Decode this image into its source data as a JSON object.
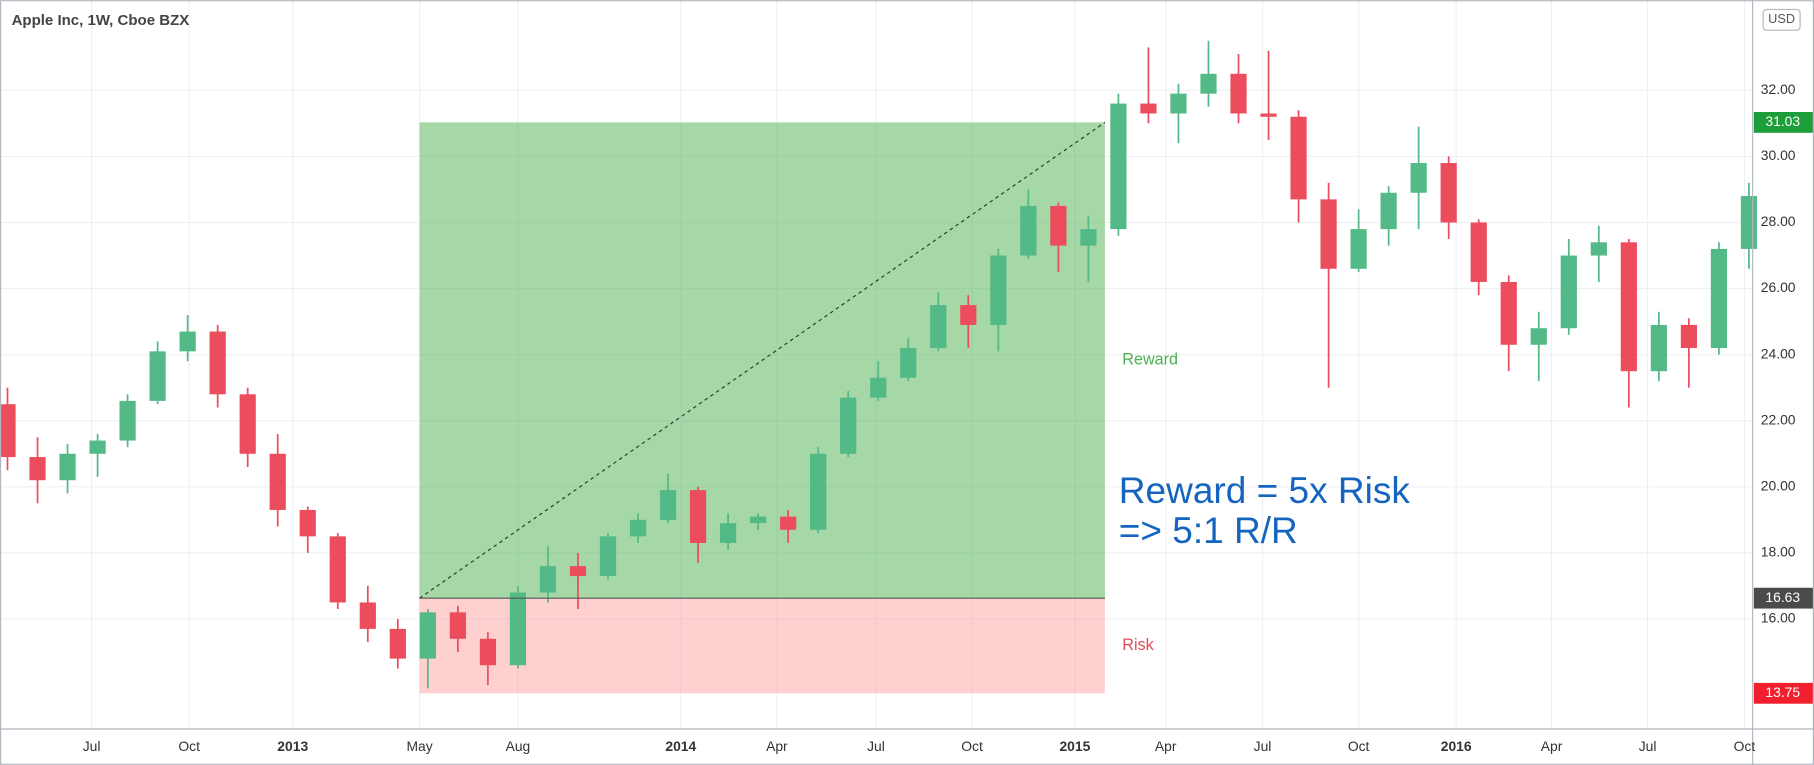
{
  "chart_data": {
    "type": "candlestick",
    "title": "Apple Inc, 1W, Cboe BZX",
    "currency": "USD",
    "up_color": "#53b987",
    "down_color": "#eb4d5c",
    "grid": true,
    "x": [
      -38,
      -34,
      -30,
      -26,
      -22,
      -18,
      -14,
      -10,
      -6,
      -2,
      2,
      6,
      10,
      14,
      18,
      22,
      26,
      30,
      34,
      38,
      42,
      46,
      50,
      54,
      58,
      62,
      66,
      70,
      74,
      78,
      82,
      86,
      90,
      94,
      98,
      102,
      106,
      110,
      114,
      118,
      122,
      126,
      130,
      134,
      138,
      142,
      146,
      150,
      154,
      158,
      162,
      166,
      170,
      174,
      178,
      182,
      186,
      190,
      194
    ],
    "open": [
      22.5,
      20.9,
      20.2,
      21.0,
      21.4,
      22.6,
      24.1,
      24.7,
      22.8,
      21.0,
      19.3,
      18.5,
      16.5,
      15.7,
      14.8,
      16.2,
      15.4,
      14.6,
      16.8,
      17.6,
      17.3,
      18.5,
      19.0,
      19.9,
      18.3,
      18.9,
      19.1,
      18.7,
      21.0,
      22.7,
      23.3,
      24.2,
      25.5,
      24.9,
      27.0,
      28.5,
      27.3,
      27.8,
      31.6,
      31.3,
      31.9,
      32.5,
      31.3,
      31.2,
      28.7,
      26.6,
      27.8,
      28.9,
      29.8,
      28.0,
      26.2,
      24.3,
      24.8,
      27.0,
      27.4,
      23.5,
      24.9,
      24.2,
      27.2
    ],
    "high": [
      23.0,
      21.5,
      21.3,
      21.6,
      22.8,
      24.4,
      25.2,
      24.9,
      23.0,
      21.6,
      19.4,
      18.6,
      17.0,
      16.0,
      16.3,
      16.4,
      15.6,
      17.0,
      18.2,
      18.0,
      18.6,
      19.2,
      20.4,
      20.0,
      19.2,
      19.2,
      19.3,
      21.2,
      22.9,
      23.8,
      24.5,
      25.9,
      25.8,
      27.2,
      29.0,
      28.6,
      28.2,
      31.9,
      33.3,
      32.2,
      33.5,
      33.1,
      33.2,
      31.4,
      29.2,
      28.4,
      29.1,
      30.9,
      30.0,
      28.1,
      26.4,
      25.3,
      27.5,
      27.9,
      27.5,
      25.3,
      25.1,
      27.4,
      29.2
    ],
    "low": [
      20.5,
      19.5,
      19.8,
      20.3,
      21.2,
      22.5,
      23.8,
      22.4,
      20.6,
      18.8,
      18.0,
      16.3,
      15.3,
      14.5,
      13.9,
      15.0,
      14.0,
      14.5,
      16.5,
      16.3,
      17.2,
      18.3,
      18.9,
      17.7,
      18.1,
      18.7,
      18.3,
      18.6,
      20.9,
      22.6,
      23.2,
      24.1,
      24.2,
      24.1,
      26.9,
      26.5,
      26.2,
      27.6,
      31.0,
      30.4,
      31.5,
      31.0,
      30.5,
      28.0,
      23.0,
      26.5,
      27.3,
      27.8,
      27.5,
      25.8,
      23.5,
      23.2,
      24.6,
      26.2,
      22.4,
      23.2,
      23.0,
      24.0,
      26.6
    ],
    "close": [
      20.9,
      20.2,
      21.0,
      21.4,
      22.6,
      24.1,
      24.7,
      22.8,
      21.0,
      19.3,
      18.5,
      16.5,
      15.7,
      14.8,
      16.2,
      15.4,
      14.6,
      16.8,
      17.6,
      17.3,
      18.5,
      19.0,
      19.9,
      18.3,
      18.9,
      19.1,
      18.7,
      21.0,
      22.7,
      23.3,
      24.2,
      25.5,
      24.9,
      27.0,
      28.5,
      27.3,
      27.8,
      31.6,
      31.3,
      31.9,
      32.5,
      31.3,
      31.2,
      28.7,
      26.6,
      27.8,
      28.9,
      29.8,
      28.0,
      26.2,
      24.3,
      24.8,
      27.0,
      27.4,
      23.5,
      24.9,
      24.2,
      27.2,
      28.8
    ],
    "xlim": [
      -39,
      194.5
    ],
    "ylim": [
      12.67,
      34.73
    ],
    "xticks": [
      {
        "value": -26.8,
        "label": "Jul"
      },
      {
        "value": -13.8,
        "label": "Oct"
      },
      {
        "value": 0,
        "label": "2013"
      },
      {
        "value": 16.9,
        "label": "May"
      },
      {
        "value": 30,
        "label": "Aug"
      },
      {
        "value": 51.7,
        "label": "2014"
      },
      {
        "value": 64.5,
        "label": "Apr"
      },
      {
        "value": 77.7,
        "label": "Jul"
      },
      {
        "value": 90.5,
        "label": "Oct"
      },
      {
        "value": 104.2,
        "label": "2015"
      },
      {
        "value": 116.3,
        "label": "Apr"
      },
      {
        "value": 129.2,
        "label": "Jul"
      },
      {
        "value": 142,
        "label": "Oct"
      },
      {
        "value": 155,
        "label": "2016"
      },
      {
        "value": 167.7,
        "label": "Apr"
      },
      {
        "value": 180.5,
        "label": "Jul"
      },
      {
        "value": 193.4,
        "label": "Oct"
      }
    ],
    "yticks": [
      {
        "value": 16,
        "label": "16.00"
      },
      {
        "value": 18,
        "label": "18.00"
      },
      {
        "value": 20,
        "label": "20.00"
      },
      {
        "value": 22,
        "label": "22.00"
      },
      {
        "value": 24,
        "label": "24.00"
      },
      {
        "value": 26,
        "label": "26.00"
      },
      {
        "value": 28,
        "label": "28.00"
      },
      {
        "value": 30,
        "label": "30.00"
      },
      {
        "value": 32,
        "label": "32.00"
      }
    ],
    "position": {
      "x_start": 16.9,
      "x_end": 108.2,
      "entry": 16.63,
      "target": 31.03,
      "stop": 13.75,
      "reward_label": "Reward",
      "risk_label": "Risk"
    },
    "annotation": [
      "Reward = 5x Risk",
      "=> 5:1 R/R"
    ]
  }
}
